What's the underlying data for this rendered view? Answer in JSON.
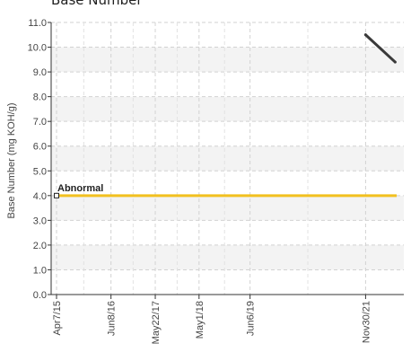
{
  "chart_data": {
    "type": "line",
    "title": "Base Number",
    "ylabel": "Base Number (mg KOH/g)",
    "xlabel": "",
    "ylim": [
      0,
      11
    ],
    "y_ticks": [
      "0.0",
      "1.0",
      "2.0",
      "3.0",
      "4.0",
      "5.0",
      "6.0",
      "7.0",
      "8.0",
      "9.0",
      "10.0",
      "11.0"
    ],
    "x_range": [
      "2015-04-07",
      "2022-08-01"
    ],
    "x_ticks": [
      {
        "label": "Apr7/15",
        "date": "2015-04-07"
      },
      {
        "label": "Jun8/16",
        "date": "2016-06-08"
      },
      {
        "label": "May22/17",
        "date": "2017-05-22"
      },
      {
        "label": "May1/18",
        "date": "2018-05-01"
      },
      {
        "label": "Jun6/19",
        "date": "2019-06-06"
      },
      {
        "label": "Nov30/21",
        "date": "2021-11-30"
      }
    ],
    "grid": true,
    "band_colors": [
      "#f3f3f3",
      "#ffffff"
    ],
    "series": [
      {
        "name": "",
        "color": "#3a3a3a",
        "points": [
          {
            "x": "2021-11-30",
            "y": 10.5
          },
          {
            "x": "2022-07-20",
            "y": 9.4
          }
        ]
      }
    ],
    "thresholds": [
      {
        "label": "Abnormal",
        "y": 4.0,
        "color": "#f2c01f",
        "x_start": "2015-04-07",
        "x_end": "2022-08-01"
      }
    ]
  }
}
